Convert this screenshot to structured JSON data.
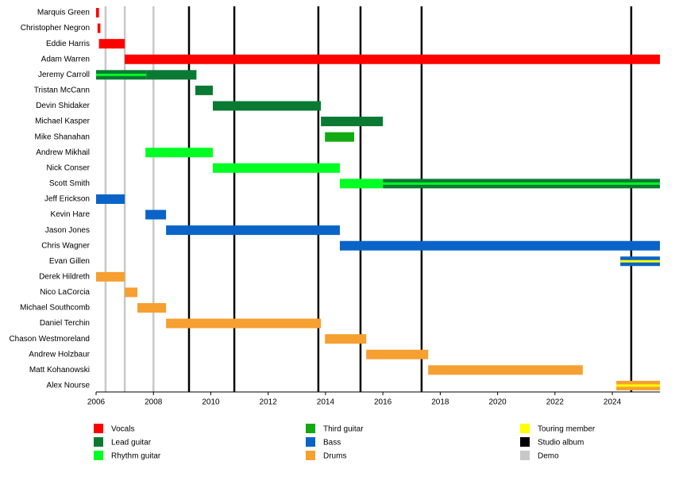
{
  "chart_data": {
    "type": "timeline",
    "xlim": [
      2006,
      2025.66
    ],
    "xticks": [
      2006,
      2008,
      2010,
      2012,
      2014,
      2016,
      2018,
      2020,
      2022,
      2024
    ],
    "roles": [
      {
        "name": "Vocals",
        "color": "#ff0000"
      },
      {
        "name": "Lead guitar",
        "color": "#0a7a33"
      },
      {
        "name": "Rhythm guitar",
        "color": "#00ff22"
      },
      {
        "name": "Third guitar",
        "color": "#11aa11"
      },
      {
        "name": "Bass",
        "color": "#0a64c8"
      },
      {
        "name": "Drums",
        "color": "#f5a030"
      },
      {
        "name": "Touring member",
        "color": "#ffff00"
      }
    ],
    "events": [
      {
        "name": "Studio album",
        "color": "#000000",
        "values": [
          2009.24,
          2010.82,
          2013.75,
          2015.22,
          2017.35,
          2024.66
        ]
      },
      {
        "name": "Demo",
        "color": "#c8c8c8",
        "values": [
          2006.33,
          2007.0,
          2008.0
        ]
      }
    ],
    "members": [
      {
        "name": "Marquis Green",
        "bars": [
          {
            "roles": [
              "Vocals"
            ],
            "start": 2006.0,
            "end": 2006.1
          }
        ]
      },
      {
        "name": "Christopher Negron",
        "bars": [
          {
            "roles": [
              "Vocals"
            ],
            "start": 2006.05,
            "end": 2006.15
          }
        ]
      },
      {
        "name": "Eddie Harris",
        "bars": [
          {
            "roles": [
              "Vocals"
            ],
            "start": 2006.1,
            "end": 2007.0
          }
        ]
      },
      {
        "name": "Adam Warren",
        "bars": [
          {
            "roles": [
              "Vocals"
            ],
            "start": 2007.0,
            "end": 2025.66
          }
        ]
      },
      {
        "name": "Jeremy Carroll",
        "bars": [
          {
            "roles": [
              "Lead guitar",
              "Rhythm guitar"
            ],
            "start": 2006.0,
            "end": 2007.75
          },
          {
            "roles": [
              "Lead guitar"
            ],
            "start": 2007.75,
            "end": 2009.5
          }
        ]
      },
      {
        "name": "Tristan McCann",
        "bars": [
          {
            "roles": [
              "Lead guitar"
            ],
            "start": 2009.46,
            "end": 2010.07
          }
        ]
      },
      {
        "name": "Devin Shidaker",
        "bars": [
          {
            "roles": [
              "Lead guitar"
            ],
            "start": 2010.07,
            "end": 2013.84
          }
        ]
      },
      {
        "name": "Michael Kasper",
        "bars": [
          {
            "roles": [
              "Lead guitar"
            ],
            "start": 2013.84,
            "end": 2016.0
          }
        ]
      },
      {
        "name": "Mike Shanahan",
        "bars": [
          {
            "roles": [
              "Third guitar"
            ],
            "start": 2013.98,
            "end": 2015.0
          }
        ]
      },
      {
        "name": "Andrew Mikhail",
        "bars": [
          {
            "roles": [
              "Rhythm guitar"
            ],
            "start": 2007.72,
            "end": 2010.07
          }
        ]
      },
      {
        "name": "Nick Conser",
        "bars": [
          {
            "roles": [
              "Rhythm guitar"
            ],
            "start": 2010.07,
            "end": 2014.5
          }
        ]
      },
      {
        "name": "Scott Smith",
        "bars": [
          {
            "roles": [
              "Rhythm guitar"
            ],
            "start": 2014.5,
            "end": 2016.0
          },
          {
            "roles": [
              "Lead guitar",
              "Rhythm guitar"
            ],
            "start": 2016.0,
            "end": 2025.66
          }
        ]
      },
      {
        "name": "Jeff Erickson",
        "bars": [
          {
            "roles": [
              "Bass"
            ],
            "start": 2006.0,
            "end": 2007.0
          }
        ]
      },
      {
        "name": "Kevin Hare",
        "bars": [
          {
            "roles": [
              "Bass"
            ],
            "start": 2007.72,
            "end": 2008.44
          }
        ]
      },
      {
        "name": "Jason Jones",
        "bars": [
          {
            "roles": [
              "Bass"
            ],
            "start": 2008.44,
            "end": 2014.5
          }
        ]
      },
      {
        "name": "Chris Wagner",
        "bars": [
          {
            "roles": [
              "Bass"
            ],
            "start": 2014.5,
            "end": 2025.66
          }
        ]
      },
      {
        "name": "Evan Gillen",
        "bars": [
          {
            "roles": [
              "Bass",
              "Touring member"
            ],
            "start": 2024.28,
            "end": 2025.66
          }
        ]
      },
      {
        "name": "Derek Hildreth",
        "bars": [
          {
            "roles": [
              "Drums"
            ],
            "start": 2006.0,
            "end": 2007.0
          }
        ]
      },
      {
        "name": "Nico LaCorcia",
        "bars": [
          {
            "roles": [
              "Drums"
            ],
            "start": 2007.0,
            "end": 2007.44
          }
        ]
      },
      {
        "name": "Michael Southcomb",
        "bars": [
          {
            "roles": [
              "Drums"
            ],
            "start": 2007.44,
            "end": 2008.44
          }
        ]
      },
      {
        "name": "Daniel Terchin",
        "bars": [
          {
            "roles": [
              "Drums"
            ],
            "start": 2008.44,
            "end": 2013.84
          }
        ]
      },
      {
        "name": "Chason Westmoreland",
        "bars": [
          {
            "roles": [
              "Drums"
            ],
            "start": 2013.98,
            "end": 2015.42
          }
        ]
      },
      {
        "name": "Andrew Holzbaur",
        "bars": [
          {
            "roles": [
              "Drums"
            ],
            "start": 2015.42,
            "end": 2017.58
          }
        ]
      },
      {
        "name": "Matt Kohanowski",
        "bars": [
          {
            "roles": [
              "Drums"
            ],
            "start": 2017.58,
            "end": 2022.97
          }
        ]
      },
      {
        "name": "Alex Nourse",
        "bars": [
          {
            "roles": [
              "Drums",
              "Touring member"
            ],
            "start": 2024.14,
            "end": 2025.66
          }
        ]
      }
    ]
  }
}
